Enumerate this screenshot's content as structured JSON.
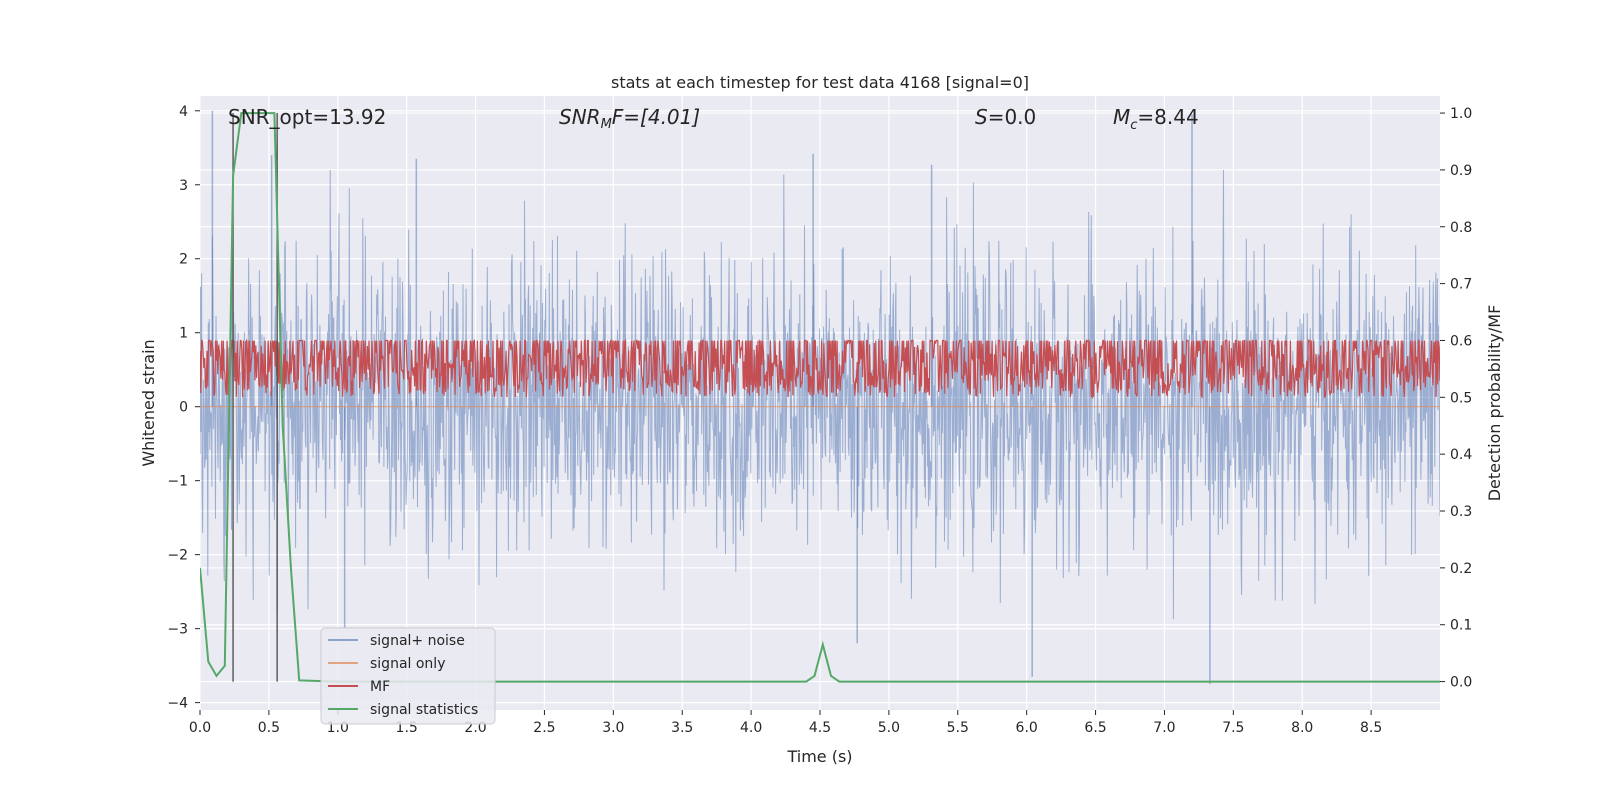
{
  "chart_data": {
    "type": "line",
    "title": "stats at each timestep for test data 4168 [signal=0]",
    "xlabel": "Time (s)",
    "ylabel_left": "Whitened strain",
    "ylabel_right": "Detection probability/MF",
    "xlim": [
      0.0,
      9.0
    ],
    "ylim_left": [
      -4.1,
      4.2
    ],
    "ylim_right": [
      -0.05,
      1.03
    ],
    "x_ticks": [
      "0.0",
      "0.5",
      "1.0",
      "1.5",
      "2.0",
      "2.5",
      "3.0",
      "3.5",
      "4.0",
      "4.5",
      "5.0",
      "5.5",
      "6.0",
      "6.5",
      "7.0",
      "7.5",
      "8.0",
      "8.5"
    ],
    "y_ticks_left": [
      "−4",
      "−3",
      "−2",
      "−1",
      "0",
      "1",
      "2",
      "3",
      "4"
    ],
    "y_ticks_right": [
      "0.0",
      "0.1",
      "0.2",
      "0.3",
      "0.4",
      "0.5",
      "0.6",
      "0.7",
      "0.8",
      "0.9",
      "1.0"
    ],
    "grid": true,
    "legend_position": "lower-left",
    "annotations": {
      "snr_opt": "SNR_opt=13.92",
      "snr_mf_sym": "SNR",
      "snr_mf_sub": "M",
      "snr_mf_rest": "F=[4.01]",
      "s_sym": "S",
      "s_rest": "=0.0",
      "mc_sym": "M",
      "mc_sub": "c",
      "mc_rest": "=8.44"
    },
    "markers": {
      "x": [
        0.24,
        0.56
      ]
    },
    "series": [
      {
        "name": "signal+ noise",
        "color": "#4c72b0",
        "alpha": 0.5,
        "axis": "left",
        "kind": "noise",
        "sigma": 0.95,
        "spikes": [
          [
            0.09,
            4.0
          ],
          [
            0.52,
            3.4
          ],
          [
            1.57,
            3.35
          ],
          [
            4.45,
            3.42
          ],
          [
            5.31,
            3.27
          ],
          [
            7.2,
            3.95
          ],
          [
            6.04,
            -3.65
          ],
          [
            7.33,
            -3.75
          ],
          [
            4.77,
            -3.2
          ],
          [
            1.05,
            -3.0
          ],
          [
            0.56,
            -2.8
          ]
        ]
      },
      {
        "name": "signal only",
        "color": "#dd8452",
        "axis": "left",
        "kind": "flat",
        "value": 0.0
      },
      {
        "name": "MF",
        "color": "#c44e52",
        "axis": "right",
        "kind": "mf",
        "base": 0.5,
        "amp": 0.12
      },
      {
        "name": "signal statistics",
        "color": "#55a868",
        "axis": "right",
        "kind": "points",
        "x": [
          0.0,
          0.06,
          0.12,
          0.18,
          0.24,
          0.3,
          0.36,
          0.42,
          0.48,
          0.54,
          0.6,
          0.66,
          0.72,
          1.0,
          4.4,
          4.46,
          4.52,
          4.58,
          4.64,
          4.7,
          9.0
        ],
        "y": [
          0.2,
          0.035,
          0.01,
          0.028,
          0.89,
          1.0,
          1.0,
          1.0,
          1.0,
          1.0,
          0.45,
          0.2,
          0.002,
          0.0,
          0.0,
          0.01,
          0.065,
          0.01,
          0.0,
          0.0,
          0.0
        ]
      }
    ]
  }
}
